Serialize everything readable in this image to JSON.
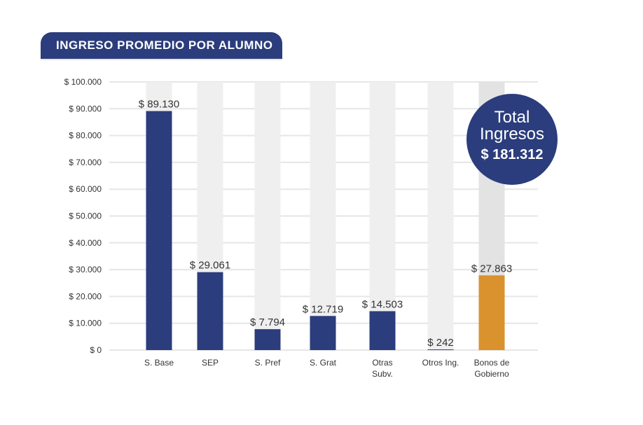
{
  "chart_data": {
    "type": "bar",
    "title": "INGRESO PROMEDIO POR ALUMNO",
    "categories": [
      "S. Base",
      "SEP",
      "S. Pref",
      "S. Grat",
      "Otras Subv.",
      "Otros Ing.",
      "Bonos de Gobierno"
    ],
    "values": [
      89130,
      29061,
      7794,
      12719,
      14503,
      242,
      27863
    ],
    "value_labels": [
      "$ 89.130",
      "$ 29.061",
      "$ 7.794",
      "$ 12.719",
      "$ 14.503",
      "$ 242",
      "$ 27.863"
    ],
    "ylim": [
      0,
      100000
    ],
    "y_ticks": [
      0,
      10000,
      20000,
      30000,
      40000,
      50000,
      60000,
      70000,
      80000,
      90000,
      100000
    ],
    "y_tick_labels": [
      "$ 0",
      "$ 10.000",
      "$ 20.000",
      "$ 30.000",
      "$ 40.000",
      "$ 50.000",
      "$ 60.000",
      "$ 70.000",
      "$ 80.000",
      "$ 90.000",
      "$ 100.000"
    ],
    "grid": true,
    "colors": {
      "bar": "#2b3d7c",
      "highlight_bar": "#d9922e",
      "background_column": "#efefef",
      "highlight_background_column": "#e3e3e3",
      "grid": "#e6e6e6"
    },
    "highlight_index": 6
  },
  "total": {
    "label_line1": "Total",
    "label_line2": "Ingresos",
    "value": "$ 181.312"
  }
}
